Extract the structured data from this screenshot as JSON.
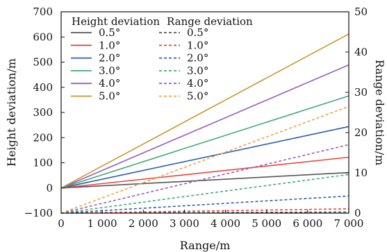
{
  "chart_data": {
    "type": "line",
    "xlabel": "Range/m",
    "ylabel_left": "Height deviation/m",
    "ylabel_right": "Range deviation/m",
    "x_ticks": [
      0,
      1000,
      2000,
      3000,
      4000,
      5000,
      6000,
      7000
    ],
    "x_tick_labels": [
      "0",
      "1 000",
      "2 000",
      "3 000",
      "4 000",
      "5 000",
      "6 000",
      "7 000"
    ],
    "xlim": [
      0,
      7000
    ],
    "ylim_left": [
      -100,
      700
    ],
    "y_ticks_left": [
      -100,
      0,
      100,
      200,
      300,
      400,
      500,
      600,
      700
    ],
    "y_tick_labels_left": [
      "−100",
      "0",
      "100",
      "200",
      "300",
      "400",
      "500",
      "600",
      "700"
    ],
    "ylim_right": [
      0,
      50
    ],
    "y_ticks_right": [
      0,
      10,
      20,
      30,
      40,
      50
    ],
    "y_tick_labels_right": [
      "0",
      "10",
      "20",
      "30",
      "40",
      "50"
    ],
    "grid": false,
    "legend_position": "top-left",
    "legend_headers": [
      "Height deviation",
      "Range deviation"
    ],
    "series": [
      {
        "name": "0.5°",
        "group": "Height deviation",
        "axis": "left",
        "style": "solid",
        "color": "#555555",
        "x": [
          0,
          7000
        ],
        "y": [
          0,
          61
        ]
      },
      {
        "name": "1.0°",
        "group": "Height deviation",
        "axis": "left",
        "style": "solid",
        "color": "#e8443a",
        "x": [
          0,
          7000
        ],
        "y": [
          0,
          122
        ]
      },
      {
        "name": "2.0°",
        "group": "Height deviation",
        "axis": "left",
        "style": "solid",
        "color": "#2a5db0",
        "x": [
          0,
          7000
        ],
        "y": [
          0,
          244
        ]
      },
      {
        "name": "3.0°",
        "group": "Height deviation",
        "axis": "left",
        "style": "solid",
        "color": "#3faa78",
        "x": [
          0,
          7000
        ],
        "y": [
          0,
          366
        ]
      },
      {
        "name": "4.0°",
        "group": "Height deviation",
        "axis": "left",
        "style": "solid",
        "color": "#9b59c0",
        "x": [
          0,
          7000
        ],
        "y": [
          0,
          489
        ]
      },
      {
        "name": "5.0°",
        "group": "Height deviation",
        "axis": "left",
        "style": "solid",
        "color": "#c8962e",
        "x": [
          0,
          7000
        ],
        "y": [
          0,
          612
        ]
      },
      {
        "name": "0.5°",
        "group": "Range deviation",
        "axis": "right",
        "style": "dashed",
        "color": "#555555",
        "x": [
          0,
          7000
        ],
        "y": [
          0,
          0.27
        ]
      },
      {
        "name": "1.0°",
        "group": "Range deviation",
        "axis": "right",
        "style": "dashed",
        "color": "#e8443a",
        "x": [
          0,
          7000
        ],
        "y": [
          0,
          1.07
        ]
      },
      {
        "name": "2.0°",
        "group": "Range deviation",
        "axis": "right",
        "style": "dashed",
        "color": "#2a5db0",
        "x": [
          0,
          7000
        ],
        "y": [
          0,
          4.26
        ]
      },
      {
        "name": "3.0°",
        "group": "Range deviation",
        "axis": "right",
        "style": "dashed",
        "color": "#3faa78",
        "x": [
          0,
          7000
        ],
        "y": [
          0,
          9.58
        ]
      },
      {
        "name": "4.0°",
        "group": "Range deviation",
        "axis": "right",
        "style": "dashed",
        "color": "#9b59c0",
        "x": [
          0,
          7000
        ],
        "y": [
          0,
          17.0
        ]
      },
      {
        "name": "5.0°",
        "group": "Range deviation",
        "axis": "right",
        "style": "dashed",
        "color": "#f0a040",
        "x": [
          0,
          7000
        ],
        "y": [
          0,
          26.5
        ]
      }
    ]
  }
}
